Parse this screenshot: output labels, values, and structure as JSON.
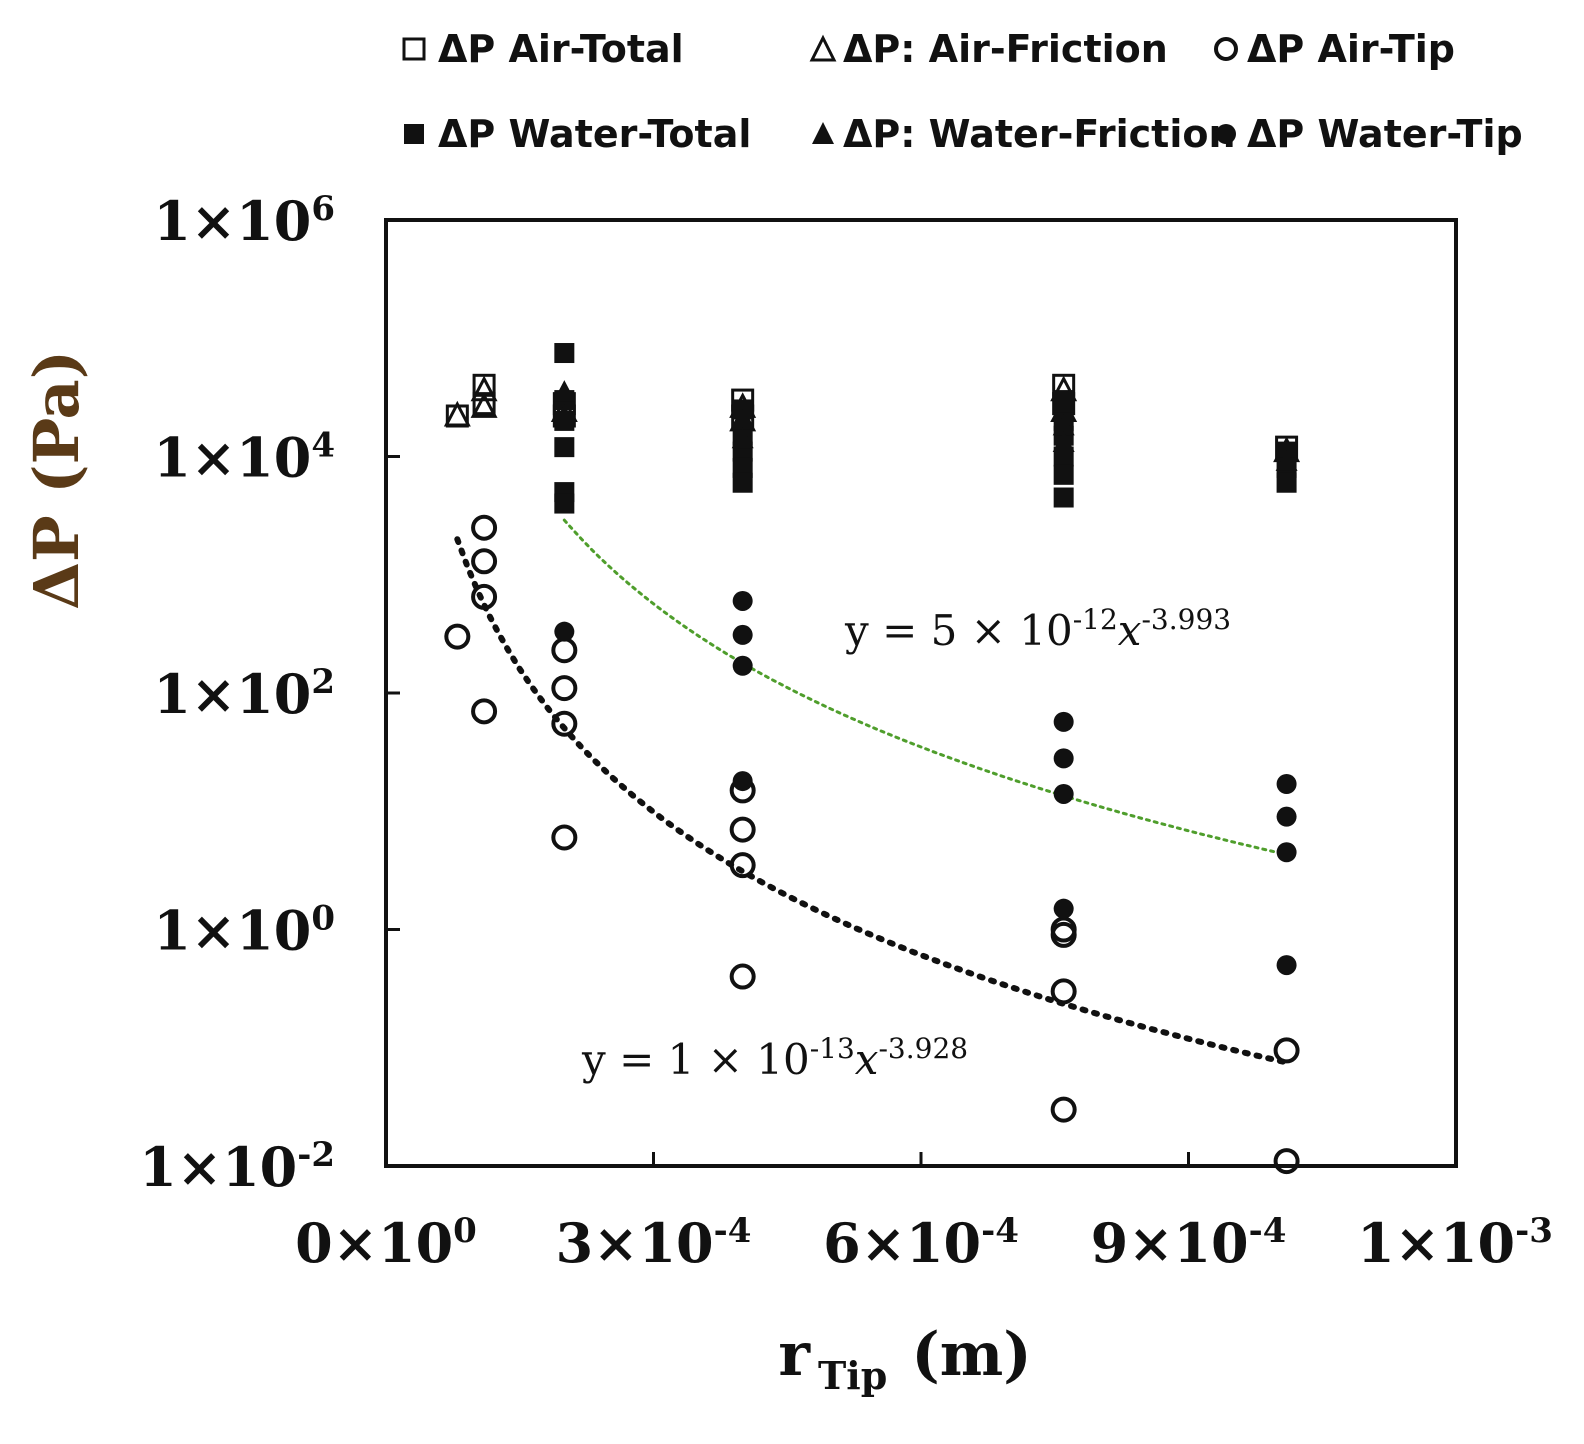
{
  "chart_data": {
    "type": "scatter",
    "title": "",
    "xlabel": {
      "main": "r",
      "sub": "Tip",
      "unit": "(m)"
    },
    "ylabel": "ΔP (Pa)",
    "x_scale": "linear",
    "y_scale": "log",
    "xlim": [
      0,
      0.0012
    ],
    "ylim": [
      0.01,
      1000000
    ],
    "grid": false,
    "legend_position": "top",
    "x_ticks": [
      {
        "value": 0,
        "mant": "0",
        "exp": "0"
      },
      {
        "value": 0.0003,
        "mant": "3",
        "exp": "-4"
      },
      {
        "value": 0.0006,
        "mant": "6",
        "exp": "-4"
      },
      {
        "value": 0.0009,
        "mant": "9",
        "exp": "-4"
      },
      {
        "value": 0.0012,
        "mant": "1",
        "exp": "-3"
      }
    ],
    "y_ticks": [
      {
        "value": 0.01,
        "mant": "1",
        "exp": "-2"
      },
      {
        "value": 1,
        "mant": "1",
        "exp": "0"
      },
      {
        "value": 100,
        "mant": "1",
        "exp": "2"
      },
      {
        "value": 10000,
        "mant": "1",
        "exp": "4"
      },
      {
        "value": 1000000,
        "mant": "1",
        "exp": "6"
      }
    ],
    "legend": [
      {
        "label": "ΔP Air-Total",
        "marker": "square",
        "filled": false
      },
      {
        "label": "ΔP: Air-Friction",
        "marker": "triangle",
        "filled": false
      },
      {
        "label": "ΔP Air-Tip",
        "marker": "circle",
        "filled": false
      },
      {
        "label": "ΔP Water-Total",
        "marker": "square",
        "filled": true
      },
      {
        "label": "ΔP: Water-Friction",
        "marker": "triangle",
        "filled": true
      },
      {
        "label": "ΔP Water-Tip",
        "marker": "circle",
        "filled": true
      }
    ],
    "series": [
      {
        "name": "ΔP Air-Total",
        "marker": "square",
        "filled": false,
        "points": [
          [
            8e-05,
            22000
          ],
          [
            0.00011,
            40000
          ],
          [
            0.00011,
            28000
          ],
          [
            0.0002,
            28000
          ],
          [
            0.0002,
            22000
          ],
          [
            0.0004,
            30000
          ],
          [
            0.0004,
            22000
          ],
          [
            0.00076,
            40000
          ],
          [
            0.00076,
            28000
          ],
          [
            0.00101,
            12000
          ]
        ]
      },
      {
        "name": "ΔP: Air-Friction",
        "marker": "triangle",
        "filled": false,
        "points": [
          [
            8e-05,
            22000
          ],
          [
            0.00011,
            36000
          ],
          [
            0.00011,
            26000
          ],
          [
            0.0002,
            24000
          ],
          [
            0.0004,
            26000
          ],
          [
            0.0004,
            20000
          ],
          [
            0.00076,
            36000
          ],
          [
            0.00076,
            24000
          ],
          [
            0.00101,
            11000
          ]
        ]
      },
      {
        "name": "ΔP Air-Tip",
        "marker": "circle",
        "filled": false,
        "points": [
          [
            8e-05,
            300
          ],
          [
            0.00011,
            2500
          ],
          [
            0.00011,
            1300
          ],
          [
            0.00011,
            650
          ],
          [
            0.00011,
            70
          ],
          [
            0.0002,
            230
          ],
          [
            0.0002,
            110
          ],
          [
            0.0002,
            55
          ],
          [
            0.0002,
            6
          ],
          [
            0.0004,
            15
          ],
          [
            0.0004,
            7
          ],
          [
            0.0004,
            3.5
          ],
          [
            0.0004,
            0.4
          ],
          [
            0.00076,
            1.0
          ],
          [
            0.00076,
            0.9
          ],
          [
            0.00076,
            0.3
          ],
          [
            0.00076,
            0.03
          ],
          [
            0.00101,
            0.095
          ],
          [
            0.00101,
            0.011
          ]
        ]
      },
      {
        "name": "ΔP Water-Total",
        "marker": "square",
        "filled": true,
        "points": [
          [
            0.0002,
            75000
          ],
          [
            0.0002,
            30000
          ],
          [
            0.0002,
            20000
          ],
          [
            0.0002,
            12000
          ],
          [
            0.0002,
            5000
          ],
          [
            0.0002,
            4000
          ],
          [
            0.0004,
            25000
          ],
          [
            0.0004,
            15000
          ],
          [
            0.0004,
            11000
          ],
          [
            0.0004,
            8000
          ],
          [
            0.0004,
            6000
          ],
          [
            0.00076,
            30000
          ],
          [
            0.00076,
            20000
          ],
          [
            0.00076,
            15000
          ],
          [
            0.00076,
            10000
          ],
          [
            0.00076,
            7000
          ],
          [
            0.00076,
            4500
          ],
          [
            0.00101,
            11000
          ],
          [
            0.00101,
            8000
          ],
          [
            0.00101,
            6000
          ]
        ]
      },
      {
        "name": "ΔP: Water-Friction",
        "marker": "triangle",
        "filled": true,
        "points": [
          [
            0.0002,
            35000
          ],
          [
            0.0002,
            22000
          ],
          [
            0.0004,
            20000
          ],
          [
            0.0004,
            14000
          ],
          [
            0.00076,
            28000
          ],
          [
            0.00076,
            18000
          ],
          [
            0.00076,
            13000
          ],
          [
            0.00101,
            9000
          ]
        ]
      },
      {
        "name": "ΔP Water-Tip",
        "marker": "circle",
        "filled": true,
        "points": [
          [
            0.0002,
            330
          ],
          [
            0.0004,
            600
          ],
          [
            0.0004,
            310
          ],
          [
            0.0004,
            170
          ],
          [
            0.0004,
            18
          ],
          [
            0.00076,
            57
          ],
          [
            0.00076,
            28
          ],
          [
            0.00076,
            14
          ],
          [
            0.00076,
            1.5
          ],
          [
            0.00101,
            17
          ],
          [
            0.00101,
            9
          ],
          [
            0.00101,
            4.5
          ],
          [
            0.00101,
            0.5
          ]
        ]
      }
    ],
    "fits": [
      {
        "color": "#4f9e2c",
        "width": 3,
        "dash": "3 5",
        "x_start": 0.0002,
        "x_end": 0.00101,
        "y_start": 2900,
        "y_end": 4.3
      },
      {
        "color": "#111111",
        "width": 6,
        "dash": "3 9",
        "x_start": 8e-05,
        "x_end": 0.00101,
        "y_start": 2000,
        "y_end": 0.075
      }
    ],
    "annotations": [
      {
        "id": "fit-water",
        "prefix": "y = 5 × 10",
        "exp": "-12",
        "var": "x",
        "xexp": "-3.993"
      },
      {
        "id": "fit-air",
        "prefix": "y = 1 × 10",
        "exp": "-13",
        "var": "x",
        "xexp": "-3.928"
      }
    ]
  }
}
